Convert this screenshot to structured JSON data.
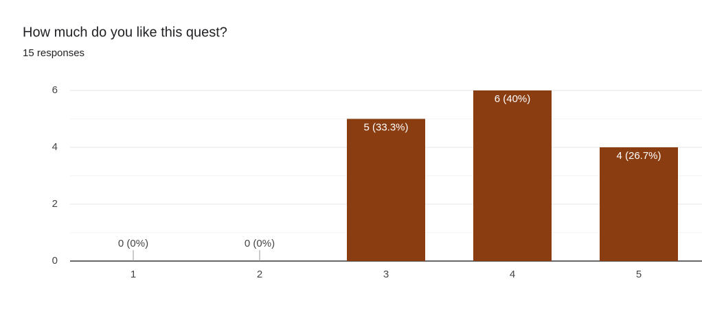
{
  "chart_data": {
    "type": "bar",
    "title": "How much do you like this quest?",
    "subtitle": "15 responses",
    "categories": [
      "1",
      "2",
      "3",
      "4",
      "5"
    ],
    "values": [
      0,
      0,
      5,
      6,
      4
    ],
    "value_labels": [
      "0 (0%)",
      "0 (0%)",
      "5 (33.3%)",
      "6 (40%)",
      "4 (26.7%)"
    ],
    "color": "#8b3d12",
    "ylim": [
      0,
      6
    ],
    "yticks": [
      0,
      2,
      4,
      6
    ],
    "minor_yticks": [
      1,
      3,
      5
    ],
    "grid": true
  }
}
